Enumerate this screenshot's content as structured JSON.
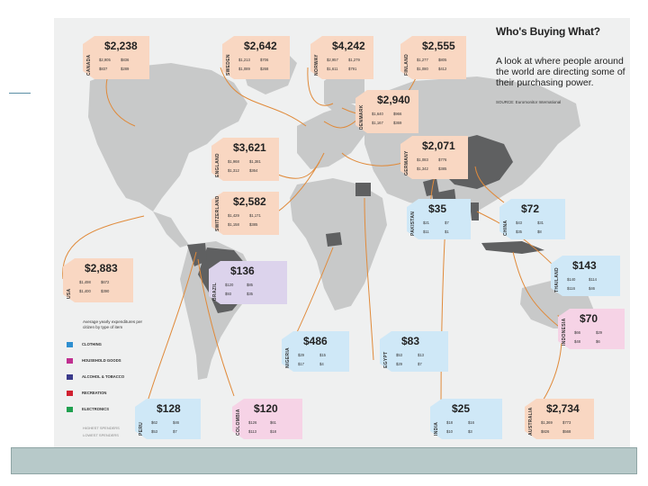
{
  "infographic": {
    "title": "Who's Buying What?",
    "subtitle": "A look at where people around the world are directing some of their purchasing power.",
    "source": "SOURCE: Euromonitor International"
  },
  "legend": {
    "title": "Average yearly expenditures per citizen by type of item",
    "items": [
      {
        "label": "CLOTHING",
        "color": "#2f8fd0",
        "icon": "shirt-icon"
      },
      {
        "label": "HOUSEHOLD GOODS",
        "color": "#c03090",
        "icon": "lamp-icon"
      },
      {
        "label": "ALCOHOL & TOBACCO",
        "color": "#3a3a8a",
        "icon": "bottles-icon"
      },
      {
        "label": "RECREATION",
        "color": "#d02030",
        "icon": "tag-icon"
      },
      {
        "label": "ELECTRONICS",
        "color": "#20a050",
        "icon": "phone-icon"
      }
    ],
    "foot1": "HIGHEST SPENDERS",
    "foot2": "LOWEST SPENDERS"
  },
  "countries": [
    {
      "name": "CANADA",
      "total": "$2,238",
      "cells": [
        "$2,905",
        "$836",
        "$837",
        "$289"
      ]
    },
    {
      "name": "SWEDEN",
      "total": "$2,642",
      "cells": [
        "$1,213",
        "$706",
        "$1,089",
        "$268"
      ]
    },
    {
      "name": "NORWAY",
      "total": "$4,242",
      "cells": [
        "$2,957",
        "$1,279",
        "$1,611",
        "$791"
      ]
    },
    {
      "name": "FINLAND",
      "total": "$2,555",
      "cells": [
        "$1,277",
        "$805",
        "$1,080",
        "$412"
      ]
    },
    {
      "name": "DENMARK",
      "total": "$2,940",
      "cells": [
        "$1,640",
        "$966",
        "$1,167",
        "$369"
      ]
    },
    {
      "name": "ENGLAND",
      "total": "$3,621",
      "cells": [
        "$1,968",
        "$1,381",
        "$1,312",
        "$364"
      ]
    },
    {
      "name": "GERMANY",
      "total": "$2,071",
      "cells": [
        "$1,083",
        "$776",
        "$1,342",
        "$385"
      ]
    },
    {
      "name": "SWITZERLAND",
      "total": "$2,582",
      "cells": [
        "$1,429",
        "$1,171",
        "$1,158",
        "$385"
      ]
    },
    {
      "name": "PAKISTAN",
      "total": "$35",
      "cells": [
        "$21",
        "$7",
        "$11",
        "$1"
      ]
    },
    {
      "name": "CHINA",
      "total": "$72",
      "cells": [
        "$43",
        "$31",
        "$35",
        "$8"
      ]
    },
    {
      "name": "USA",
      "total": "$2,883",
      "cells": [
        "$1,498",
        "$672",
        "$1,400",
        "$390"
      ]
    },
    {
      "name": "BRAZIL",
      "total": "$136",
      "cells": [
        "$120",
        "$85",
        "$93",
        "$35"
      ]
    },
    {
      "name": "THAILAND",
      "total": "$143",
      "cells": [
        "$140",
        "$114",
        "$116",
        "$46"
      ]
    },
    {
      "name": "INDONESIA",
      "total": "$70",
      "cells": [
        "$66",
        "$29",
        "$48",
        "$6"
      ]
    },
    {
      "name": "NIGERIA",
      "total": "$486",
      "cells": [
        "$29",
        "$15",
        "$17",
        "$4"
      ]
    },
    {
      "name": "EGYPT",
      "total": "$83",
      "cells": [
        "$53",
        "$13",
        "$29",
        "$7"
      ]
    },
    {
      "name": "PERU",
      "total": "$128",
      "cells": [
        "$62",
        "$46",
        "$53",
        "$7"
      ]
    },
    {
      "name": "COLOMBIA",
      "total": "$120",
      "cells": [
        "$126",
        "$61",
        "$113",
        "$18"
      ]
    },
    {
      "name": "INDIA",
      "total": "$25",
      "cells": [
        "$18",
        "$16",
        "$10",
        "$3"
      ]
    },
    {
      "name": "AUSTRALIA",
      "total": "$2,734",
      "cells": [
        "$1,369",
        "$773",
        "$826",
        "$568"
      ]
    }
  ]
}
